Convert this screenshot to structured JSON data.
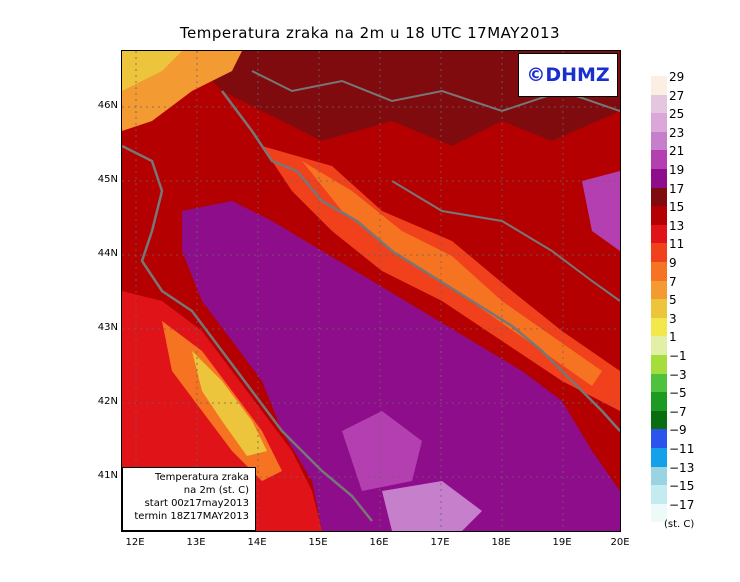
{
  "title": "Temperatura zraka na 2m u 18 UTC 17MAY2013",
  "logo": "©DHMZ",
  "info": {
    "line1": "Temperatura zraka",
    "line2": "na 2m (st. C)",
    "line3": "start 00z17may2013",
    "line4": "termin 18Z17MAY2013"
  },
  "axes": {
    "lat_labels": [
      "46N",
      "45N",
      "44N",
      "43N",
      "42N",
      "41N"
    ],
    "lon_labels": [
      "12E",
      "13E",
      "14E",
      "15E",
      "16E",
      "17E",
      "18E",
      "19E",
      "20E"
    ]
  },
  "legend": {
    "labels": [
      "29",
      "27",
      "25",
      "23",
      "21",
      "19",
      "17",
      "15",
      "13",
      "11",
      "9",
      "7",
      "5",
      "3",
      "1",
      "−1",
      "−3",
      "−5",
      "−7",
      "−9",
      "−11",
      "−13",
      "−15",
      "−17"
    ],
    "colors": [
      "#fbeee2",
      "#e4c6de",
      "#dba6d8",
      "#c67fcb",
      "#b43fb0",
      "#8d0d8a",
      "#800b0e",
      "#b40000",
      "#e01418",
      "#f0401c",
      "#f57321",
      "#f39a33",
      "#ecc53c",
      "#f2e84c",
      "#e2f0a7",
      "#a5dd3c",
      "#4fc23d",
      "#1c9a22",
      "#0a6e10",
      "#2b54ec",
      "#15a1ea",
      "#9ad3e2",
      "#c4ebf0",
      "#edfaf7"
    ],
    "unit": "(st. C)"
  }
}
